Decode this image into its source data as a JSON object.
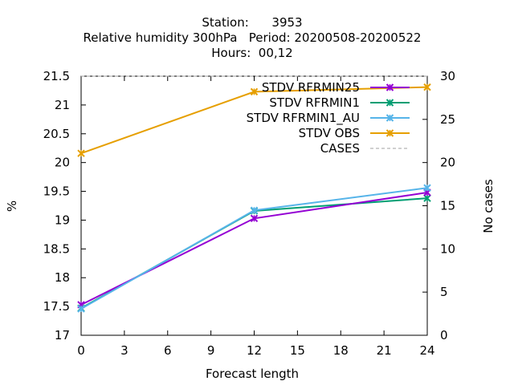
{
  "chart_data": {
    "type": "line",
    "title_lines": [
      "Station:      3953",
      "Relative humidity 300hPa   Period: 20200508-20200522",
      "Hours:  00,12"
    ],
    "xlabel": "Forecast length",
    "ylabel": "%",
    "y2label": "No cases",
    "xlim": [
      0,
      24
    ],
    "ylim": [
      17,
      21.5
    ],
    "y2lim": [
      0,
      30
    ],
    "xticks": [
      0,
      3,
      6,
      9,
      12,
      15,
      18,
      21,
      24
    ],
    "yticks": [
      17,
      17.5,
      18,
      18.5,
      19,
      19.5,
      20,
      20.5,
      21,
      21.5
    ],
    "y2ticks": [
      0,
      5,
      10,
      15,
      20,
      25,
      30
    ],
    "grid": false,
    "legend_position": "top-right",
    "series": [
      {
        "name": "STDV RFRMIN25",
        "axis": "y",
        "color": "#9400d3",
        "marker": "x",
        "x": [
          0,
          12,
          24
        ],
        "y": [
          17.53,
          19.03,
          19.48
        ]
      },
      {
        "name": "STDV RFRMIN1",
        "axis": "y",
        "color": "#009e73",
        "marker": "x",
        "x": [
          0,
          12,
          24
        ],
        "y": [
          17.47,
          19.16,
          19.38
        ]
      },
      {
        "name": "STDV RFRMIN1_AU",
        "axis": "y",
        "color": "#56b4e9",
        "marker": "x",
        "x": [
          0,
          12,
          24
        ],
        "y": [
          17.46,
          19.17,
          19.56
        ]
      },
      {
        "name": "STDV OBS",
        "axis": "y",
        "color": "#e69f00",
        "marker": "x",
        "x": [
          0,
          12,
          24
        ],
        "y": [
          20.16,
          21.23,
          21.31
        ]
      },
      {
        "name": "CASES",
        "axis": "y2",
        "color": "#a0a0a0",
        "dashed": true,
        "x": [
          0,
          12,
          24
        ],
        "y": [
          30,
          30,
          30
        ]
      }
    ]
  }
}
